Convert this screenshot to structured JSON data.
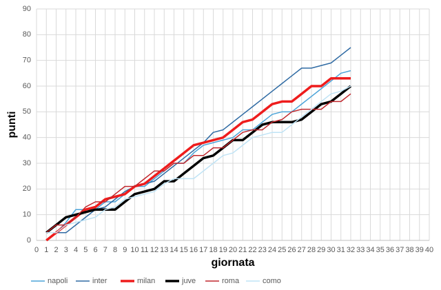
{
  "chart_data": {
    "type": "line",
    "x_label": "giornata",
    "y_label": "punti",
    "x": [
      1,
      2,
      3,
      4,
      5,
      6,
      7,
      8,
      9,
      10,
      11,
      12,
      13,
      14,
      15,
      16,
      17,
      18,
      19,
      20,
      21,
      22,
      23,
      24,
      25,
      26,
      27,
      28,
      29,
      30,
      31,
      32
    ],
    "series": [
      {
        "name": "napoli",
        "color": "#4aa3d8",
        "line_width": 1.5,
        "values": [
          3,
          3,
          7,
          12,
          12,
          12,
          15,
          15,
          18,
          21,
          21,
          24,
          27,
          30,
          30,
          34,
          37,
          38,
          39,
          40,
          43,
          43,
          46,
          49,
          50,
          50,
          53,
          56,
          59,
          62,
          65,
          66
        ]
      },
      {
        "name": "inter",
        "color": "#2e6aa3",
        "line_width": 1.5,
        "values": [
          3,
          3,
          3,
          6,
          9,
          12,
          13,
          16,
          19,
          21,
          22,
          23,
          26,
          29,
          32,
          35,
          38,
          42,
          43,
          46,
          49,
          52,
          55,
          58,
          61,
          64,
          67,
          67,
          68,
          69,
          72,
          75
        ]
      },
      {
        "name": "milan",
        "color": "#ee1c1c",
        "line_width": 3.5,
        "values": [
          0,
          3,
          6,
          9,
          12,
          13,
          16,
          17,
          18,
          21,
          22,
          25,
          28,
          31,
          34,
          37,
          38,
          39,
          40,
          43,
          46,
          47,
          50,
          53,
          54,
          54,
          57,
          60,
          60,
          63,
          63,
          63
        ]
      },
      {
        "name": "juve",
        "color": "#000000",
        "line_width": 3.5,
        "values": [
          3,
          6,
          9,
          10,
          11,
          12,
          12,
          12,
          15,
          18,
          19,
          20,
          23,
          23,
          26,
          29,
          32,
          33,
          36,
          39,
          39,
          42,
          45,
          46,
          46,
          46,
          47,
          50,
          53,
          54,
          57,
          60
        ]
      },
      {
        "name": "roma",
        "color": "#c0272d",
        "line_width": 1.5,
        "values": [
          3,
          6,
          6,
          9,
          13,
          15,
          15,
          18,
          21,
          21,
          24,
          27,
          27,
          30,
          30,
          33,
          33,
          36,
          36,
          39,
          42,
          43,
          43,
          46,
          47,
          50,
          51,
          51,
          51,
          54,
          54,
          57
        ]
      },
      {
        "name": "como",
        "color": "#bfe3f5",
        "line_width": 1.5,
        "values": [
          3,
          3,
          6,
          7,
          8,
          9,
          12,
          13,
          16,
          17,
          18,
          19,
          22,
          24,
          24,
          24,
          27,
          30,
          33,
          34,
          37,
          40,
          41,
          42,
          42,
          45,
          48,
          51,
          54,
          57,
          58,
          60
        ]
      }
    ],
    "xlim": [
      0,
      40
    ],
    "xticks": [
      0,
      1,
      2,
      3,
      4,
      5,
      6,
      7,
      8,
      9,
      10,
      11,
      12,
      13,
      14,
      15,
      16,
      17,
      18,
      19,
      20,
      21,
      22,
      23,
      24,
      25,
      26,
      27,
      28,
      29,
      30,
      31,
      32,
      33,
      34,
      35,
      36,
      37,
      38,
      39,
      40
    ],
    "ylim": [
      0,
      90
    ],
    "yticks": [
      0,
      10,
      20,
      30,
      40,
      50,
      60,
      70,
      80,
      90
    ],
    "grid": true,
    "legend": "bottom"
  }
}
